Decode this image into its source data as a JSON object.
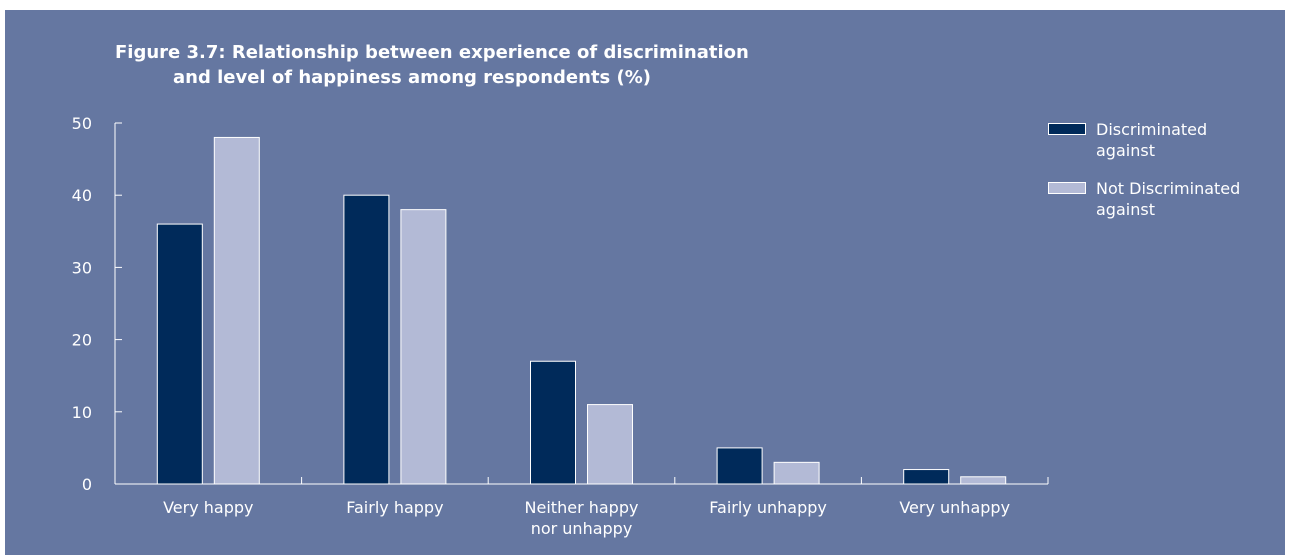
{
  "chart_data": {
    "type": "bar",
    "title_line1": "Figure 3.7: Relationship between experience of discrimination",
    "title_line2": "and level of happiness among respondents (%)",
    "xlabel": "",
    "ylabel": "",
    "categories": [
      [
        "Very happy"
      ],
      [
        "Fairly happy"
      ],
      [
        "Neither happy",
        "nor unhappy"
      ],
      [
        "Fairly unhappy"
      ],
      [
        "Very unhappy"
      ]
    ],
    "series": [
      {
        "name": "Discriminated against",
        "legend_lines": [
          "Discriminated",
          "against"
        ],
        "color": "#002a5a",
        "values": [
          36,
          40,
          17,
          5,
          2
        ]
      },
      {
        "name": "Not Discriminated against",
        "legend_lines": [
          "Not Discriminated",
          "against"
        ],
        "color": "#b3bad6",
        "values": [
          48,
          38,
          11,
          3,
          1
        ]
      }
    ],
    "y_ticks": [
      0,
      10,
      20,
      30,
      40,
      50
    ],
    "ylim": [
      0,
      50
    ],
    "grid": false,
    "legend_position": "top-right",
    "colors": {
      "background": "#6577a1",
      "axis": "#ffffff",
      "bar_edge": "#ffffff"
    }
  }
}
